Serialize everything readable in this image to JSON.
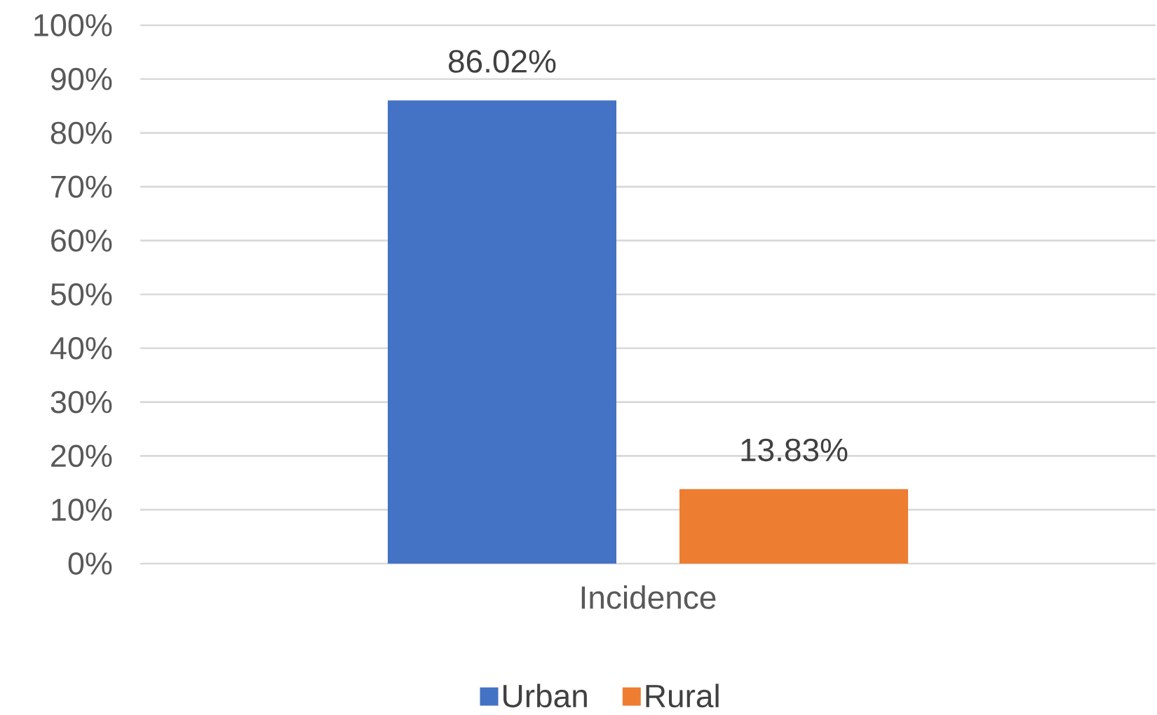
{
  "chart_data": {
    "type": "bar",
    "categories": [
      "Incidence"
    ],
    "series": [
      {
        "name": "Urban",
        "color": "#4472c4",
        "values": [
          86.02
        ],
        "value_labels": [
          "86.02%"
        ]
      },
      {
        "name": "Rural",
        "color": "#ed7d31",
        "values": [
          13.83
        ],
        "value_labels": [
          "13.83%"
        ]
      }
    ],
    "ylim": [
      0,
      100
    ],
    "yticks": [
      {
        "value": 0,
        "label": "0%"
      },
      {
        "value": 10,
        "label": "10%"
      },
      {
        "value": 20,
        "label": "20%"
      },
      {
        "value": 30,
        "label": "30%"
      },
      {
        "value": 40,
        "label": "40%"
      },
      {
        "value": 50,
        "label": "50%"
      },
      {
        "value": 60,
        "label": "60%"
      },
      {
        "value": 70,
        "label": "70%"
      },
      {
        "value": 80,
        "label": "80%"
      },
      {
        "value": 90,
        "label": "90%"
      },
      {
        "value": 100,
        "label": "100%"
      }
    ],
    "grid": "y",
    "legend": "bottom"
  }
}
